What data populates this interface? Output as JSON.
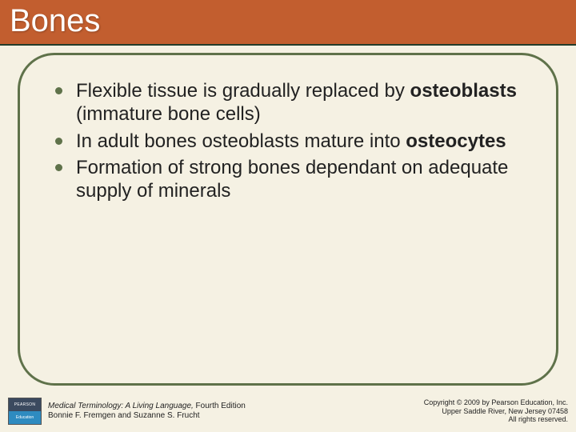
{
  "title": "Bones",
  "bullets": [
    {
      "pre": "Flexible tissue is gradually replaced by ",
      "bold": "osteoblasts",
      "post": " (immature bone cells)"
    },
    {
      "pre": "In adult bones osteoblasts mature into ",
      "bold": "osteocytes",
      "post": ""
    },
    {
      "pre": "Formation of strong bones dependant on adequate supply of minerals",
      "bold": "",
      "post": ""
    }
  ],
  "logo": {
    "top": "PEARSON",
    "bottom": "Education"
  },
  "book": {
    "title": "Medical Terminology: A Living Language,",
    "edition": " Fourth Edition",
    "authors": "Bonnie F. Fremgen and Suzanne S. Frucht"
  },
  "copyright": {
    "line1": "Copyright © 2009 by Pearson Education, Inc.",
    "line2": "Upper Saddle River, New Jersey 07458",
    "line3": "All rights reserved."
  },
  "colors": {
    "titlebar_bg": "#c25e2f",
    "border": "#5f724a",
    "page_bg": "#f5f1e3"
  }
}
